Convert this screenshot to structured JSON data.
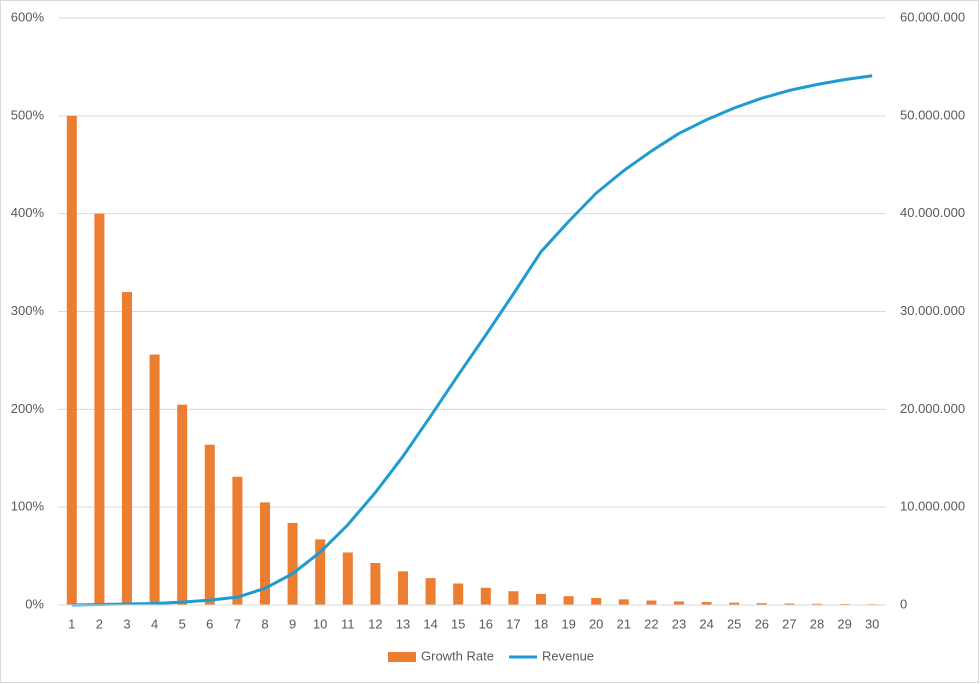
{
  "chart_data": {
    "type": "bar-line",
    "categories": [
      1,
      2,
      3,
      4,
      5,
      6,
      7,
      8,
      9,
      10,
      11,
      12,
      13,
      14,
      15,
      16,
      17,
      18,
      19,
      20,
      21,
      22,
      23,
      24,
      25,
      26,
      27,
      28,
      29,
      30
    ],
    "series": [
      {
        "name": "Growth Rate",
        "type": "bar",
        "color": "#ed7d31",
        "values": [
          500,
          400,
          320,
          256,
          204.8,
          163.8,
          131.1,
          104.9,
          83.9,
          67.1,
          53.7,
          42.9,
          34.4,
          27.5,
          22.0,
          17.6,
          14.1,
          11.3,
          9.0,
          7.2,
          5.8,
          4.6,
          3.7,
          3.0,
          2.4,
          1.9,
          1.5,
          1.2,
          1.0,
          0.8
        ]
      },
      {
        "name": "Revenue",
        "type": "line",
        "axis": "y2",
        "color": "#1f9bd1",
        "values": [
          0,
          50000,
          100000,
          150000,
          300000,
          500000,
          800000,
          1700000,
          3200000,
          5400000,
          8200000,
          11500000,
          15200000,
          19300000,
          23500000,
          27600000,
          31800000,
          36100000,
          39200000,
          42100000,
          44400000,
          46400000,
          48200000,
          49600000,
          50800000,
          51800000,
          52600000,
          53200000,
          53700000,
          54100000
        ]
      }
    ],
    "ylim": [
      0,
      600
    ],
    "yticks": [
      {
        "value": 0,
        "label": "0%"
      },
      {
        "value": 100,
        "label": "100%"
      },
      {
        "value": 200,
        "label": "200%"
      },
      {
        "value": 300,
        "label": "300%"
      },
      {
        "value": 400,
        "label": "400%"
      },
      {
        "value": 500,
        "label": "500%"
      },
      {
        "value": 600,
        "label": "600%"
      }
    ],
    "y2lim": [
      0,
      60000000
    ],
    "y2ticks": [
      0,
      {
        "value": 10000000,
        "label": "10.000.000"
      },
      {
        "value": 20000000,
        "label": "20.000.000"
      },
      {
        "value": 30000000,
        "label": "30.000.000"
      },
      {
        "value": 40000000,
        "label": "40.000.000"
      },
      {
        "value": 50000000,
        "label": "50.000.000"
      },
      {
        "value": 60000000,
        "label": "60.000.000"
      }
    ],
    "grid": true,
    "legend": "bottom"
  }
}
